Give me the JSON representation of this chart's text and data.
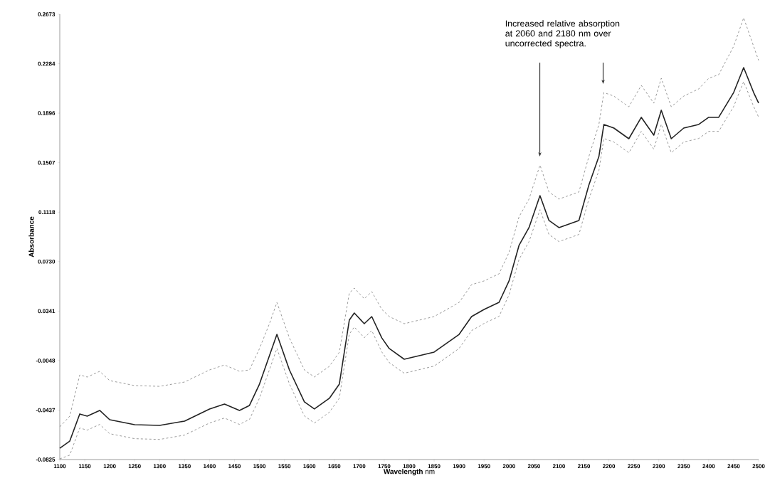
{
  "chart_data": {
    "type": "line",
    "xlabel": "**Wavelength** nm",
    "ylabel": "Absorbance",
    "x": [
      1100,
      1120,
      1140,
      1155,
      1180,
      1200,
      1250,
      1300,
      1350,
      1400,
      1430,
      1460,
      1480,
      1500,
      1520,
      1535,
      1560,
      1590,
      1610,
      1640,
      1660,
      1680,
      1690,
      1710,
      1725,
      1745,
      1760,
      1790,
      1850,
      1900,
      1925,
      1950,
      1980,
      2000,
      2020,
      2040,
      2062,
      2080,
      2100,
      2140,
      2160,
      2180,
      2190,
      2210,
      2240,
      2265,
      2290,
      2305,
      2325,
      2350,
      2380,
      2400,
      2420,
      2450,
      2470,
      2490,
      2500
    ],
    "series": [
      {
        "color": "#808080",
        "line_style": "dashed",
        "values": [
          -0.0568,
          -0.0484,
          -0.016,
          -0.0177,
          -0.0132,
          -0.0205,
          -0.0244,
          -0.025,
          -0.0216,
          -0.0121,
          -0.0082,
          -0.0132,
          -0.0121,
          0.0046,
          0.0242,
          0.0409,
          0.013,
          -0.0121,
          -0.0177,
          -0.0093,
          0.0018,
          0.0482,
          0.0522,
          0.0438,
          0.0494,
          0.0355,
          0.0298,
          0.0242,
          0.0298,
          0.0409,
          0.0549,
          0.0578,
          0.0634,
          0.0802,
          0.1081,
          0.1221,
          0.1488,
          0.1277,
          0.1221,
          0.1277,
          0.1556,
          0.1806,
          0.2058,
          0.203,
          0.1946,
          0.2114,
          0.1974,
          0.217,
          0.1946,
          0.203,
          0.2086,
          0.217,
          0.2198,
          0.2421,
          0.2645,
          0.2421,
          0.231
        ]
      },
      {
        "color": "#222222",
        "line_style": "solid",
        "values": [
          -0.0736,
          -0.068,
          -0.0467,
          -0.0484,
          -0.0439,
          -0.0512,
          -0.0551,
          -0.0557,
          -0.0523,
          -0.0428,
          -0.0389,
          -0.0439,
          -0.04,
          -0.0233,
          -0.0009,
          0.0158,
          -0.0121,
          -0.0372,
          -0.0428,
          -0.0344,
          -0.0233,
          0.027,
          0.0326,
          0.0242,
          0.0298,
          0.0131,
          0.0047,
          -0.0037,
          0.0019,
          0.0158,
          0.0298,
          0.0354,
          0.041,
          0.0578,
          0.0857,
          0.0997,
          0.1248,
          0.1053,
          0.0997,
          0.1053,
          0.1332,
          0.1555,
          0.1807,
          0.1779,
          0.1695,
          0.1863,
          0.1723,
          0.1919,
          0.1695,
          0.1779,
          0.1807,
          0.1863,
          0.1863,
          0.2058,
          0.2254,
          0.2058,
          0.1975
        ]
      },
      {
        "color": "#808080",
        "line_style": "dashed",
        "values": [
          -0.082,
          -0.079,
          -0.0577,
          -0.0594,
          -0.0549,
          -0.0622,
          -0.0661,
          -0.0667,
          -0.0633,
          -0.0538,
          -0.0499,
          -0.0549,
          -0.051,
          -0.0343,
          -0.0119,
          0.0048,
          -0.0231,
          -0.0482,
          -0.0538,
          -0.0454,
          -0.0343,
          0.016,
          0.0216,
          0.0132,
          0.0188,
          0.0021,
          -0.0063,
          -0.0147,
          -0.0091,
          0.0048,
          0.0188,
          0.0244,
          0.03,
          0.0468,
          0.0747,
          0.0887,
          0.1138,
          0.0943,
          0.0887,
          0.0943,
          0.1222,
          0.1445,
          0.1697,
          0.1669,
          0.1585,
          0.1753,
          0.1613,
          0.1809,
          0.1585,
          0.1669,
          0.1697,
          0.1753,
          0.1753,
          0.1948,
          0.2144,
          0.1948,
          0.1865
        ]
      }
    ],
    "xlim": [
      1100,
      2500
    ],
    "xticks": [
      1100,
      1150,
      1200,
      1250,
      1300,
      1350,
      1400,
      1450,
      1500,
      1550,
      1600,
      1650,
      1700,
      1750,
      1800,
      1850,
      1900,
      1950,
      2000,
      2050,
      2100,
      2150,
      2200,
      2250,
      2300,
      2350,
      2400,
      2450,
      2500
    ],
    "ylim": [
      -0.0825,
      0.2673
    ],
    "yticks": [
      -0.0825,
      -0.0437,
      -0.0048,
      0.0341,
      {
        "value": 0.073,
        "label": "0.0730"
      },
      0.1118,
      0.1507,
      0.1896,
      0.2284,
      0.2673
    ],
    "annotations": [
      "Increased relative absorption at 2060 and 2180 nm over uncorrected spectra."
    ],
    "grid": false,
    "marker": "none"
  }
}
